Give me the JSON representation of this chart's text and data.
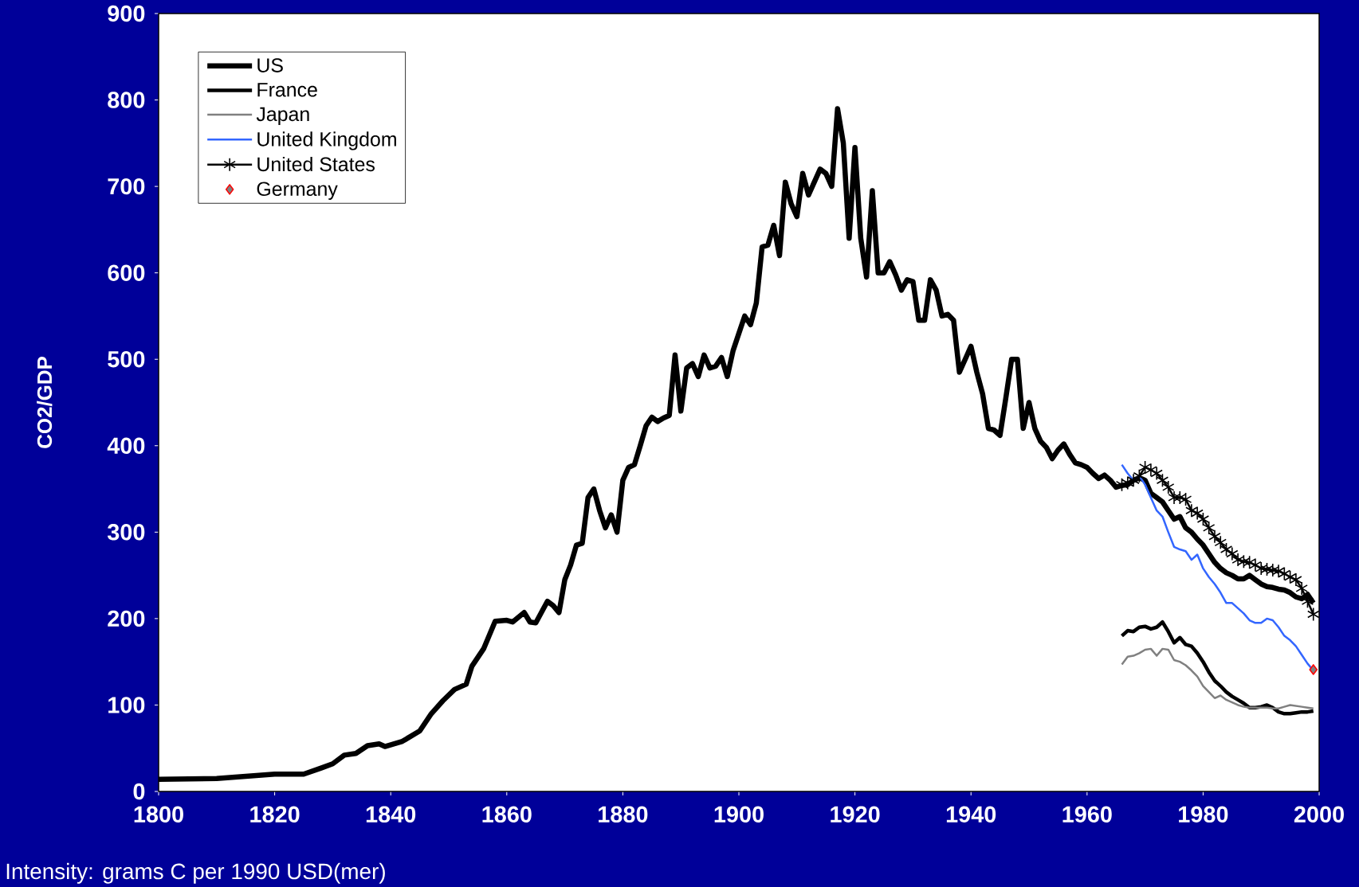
{
  "chart_data": {
    "type": "line",
    "ylabel": "CO2/GDP",
    "annotations": [
      "Intensity: grams C per 1990 USD(mer)"
    ],
    "xlim": [
      1800,
      2000
    ],
    "xticks": [
      1800,
      1820,
      1840,
      1860,
      1880,
      1900,
      1920,
      1940,
      1960,
      1980,
      2000
    ],
    "ylim": [
      0,
      900
    ],
    "yticks": [
      0,
      100,
      200,
      300,
      400,
      500,
      600,
      700,
      800,
      900
    ],
    "grid": false,
    "legend": "top left",
    "series": [
      {
        "name": "US",
        "color": "#000000",
        "marker": "none",
        "x": [
          1800,
          1810,
          1820,
          1825,
          1828,
          1830,
          1832,
          1834,
          1836,
          1838,
          1839,
          1842,
          1845,
          1847,
          1849,
          1851,
          1853,
          1854,
          1856,
          1858,
          1860,
          1861,
          1863,
          1864,
          1865,
          1867,
          1868,
          1869,
          1870,
          1871,
          1872,
          1873,
          1874,
          1875,
          1876,
          1877,
          1878,
          1879,
          1880,
          1881,
          1882,
          1883,
          1884,
          1885,
          1886,
          1887,
          1888,
          1889,
          1890,
          1891,
          1892,
          1893,
          1894,
          1895,
          1896,
          1897,
          1898,
          1899,
          1900,
          1901,
          1902,
          1903,
          1904,
          1905,
          1906,
          1907,
          1908,
          1909,
          1910,
          1911,
          1912,
          1913,
          1914,
          1915,
          1916,
          1917,
          1918,
          1919,
          1920,
          1921,
          1922,
          1923,
          1924,
          1925,
          1926,
          1927,
          1928,
          1929,
          1930,
          1931,
          1932,
          1933,
          1934,
          1935,
          1936,
          1937,
          1938,
          1939,
          1940,
          1941,
          1942,
          1943,
          1944,
          1945,
          1946,
          1947,
          1948,
          1949,
          1950,
          1951,
          1952,
          1953,
          1954,
          1955,
          1956,
          1957,
          1958,
          1959,
          1960,
          1961,
          1962,
          1963,
          1964,
          1965,
          1966,
          1967,
          1968,
          1969,
          1970,
          1971,
          1972,
          1973,
          1974,
          1975,
          1976,
          1977,
          1978,
          1979,
          1980,
          1981,
          1982,
          1983,
          1984,
          1985,
          1986,
          1987,
          1988,
          1989,
          1990,
          1991,
          1992,
          1993,
          1994,
          1995,
          1996,
          1997,
          1998,
          1999
        ],
        "values": [
          14,
          15,
          20,
          20,
          27,
          32,
          42,
          44,
          53,
          55,
          52,
          58,
          70,
          90,
          105,
          118,
          124,
          145,
          165,
          197,
          198,
          196,
          207,
          196,
          195,
          220,
          215,
          207,
          245,
          262,
          285,
          287,
          340,
          350,
          325,
          305,
          320,
          300,
          360,
          375,
          378,
          400,
          423,
          433,
          428,
          432,
          435,
          505,
          440,
          490,
          495,
          480,
          505,
          490,
          492,
          502,
          480,
          510,
          530,
          550,
          540,
          565,
          630,
          632,
          655,
          620,
          705,
          680,
          665,
          715,
          690,
          705,
          720,
          715,
          700,
          790,
          750,
          640,
          745,
          640,
          595,
          695,
          600,
          600,
          613,
          598,
          580,
          592,
          590,
          545,
          545,
          592,
          580,
          550,
          552,
          545,
          485,
          500,
          515,
          485,
          460,
          420,
          418,
          412,
          455,
          500,
          500,
          420,
          450,
          420,
          405,
          398,
          385,
          395,
          402,
          390,
          380,
          378,
          375,
          368,
          362,
          366,
          360,
          352,
          354,
          355,
          360,
          363,
          360,
          345,
          340,
          335,
          325,
          315,
          318,
          305,
          300,
          292,
          285,
          275,
          265,
          258,
          253,
          250,
          246,
          246,
          250,
          245,
          240,
          237,
          236,
          234,
          233,
          230,
          225,
          223,
          228,
          218
        ]
      },
      {
        "name": "France",
        "color": "#000000",
        "marker": "none",
        "x": [
          1966,
          1967,
          1968,
          1969,
          1970,
          1971,
          1972,
          1973,
          1974,
          1975,
          1976,
          1977,
          1978,
          1979,
          1980,
          1981,
          1982,
          1983,
          1984,
          1985,
          1986,
          1987,
          1988,
          1989,
          1990,
          1991,
          1992,
          1993,
          1994,
          1995,
          1996,
          1997,
          1998,
          1999
        ],
        "values": [
          180,
          186,
          185,
          190,
          191,
          188,
          190,
          196,
          185,
          172,
          178,
          170,
          168,
          160,
          150,
          138,
          128,
          122,
          115,
          110,
          106,
          102,
          97,
          97,
          98,
          100,
          97,
          92,
          90,
          90,
          91,
          92,
          92,
          93
        ]
      },
      {
        "name": "Japan",
        "color": "#808080",
        "marker": "none",
        "x": [
          1966,
          1967,
          1968,
          1969,
          1970,
          1971,
          1972,
          1973,
          1974,
          1975,
          1976,
          1977,
          1978,
          1979,
          1980,
          1981,
          1982,
          1983,
          1984,
          1985,
          1986,
          1987,
          1988,
          1989,
          1990,
          1991,
          1992,
          1993,
          1994,
          1995,
          1996,
          1997,
          1998,
          1999
        ],
        "values": [
          147,
          156,
          157,
          160,
          164,
          165,
          157,
          165,
          164,
          152,
          150,
          146,
          140,
          133,
          122,
          115,
          108,
          111,
          106,
          103,
          100,
          98,
          97,
          97,
          97,
          97,
          96,
          96,
          98,
          100,
          99,
          98,
          97,
          96
        ]
      },
      {
        "name": "United Kingdom",
        "color": "#3366ff",
        "marker": "none",
        "x": [
          1966,
          1967,
          1968,
          1969,
          1970,
          1971,
          1972,
          1973,
          1974,
          1975,
          1976,
          1977,
          1978,
          1979,
          1980,
          1981,
          1982,
          1983,
          1984,
          1985,
          1986,
          1987,
          1988,
          1989,
          1990,
          1991,
          1992,
          1993,
          1994,
          1995,
          1996,
          1997,
          1998,
          1999
        ],
        "values": [
          378,
          368,
          360,
          365,
          355,
          340,
          325,
          318,
          300,
          283,
          280,
          278,
          268,
          274,
          258,
          248,
          240,
          230,
          218,
          218,
          212,
          206,
          198,
          195,
          195,
          200,
          198,
          190,
          180,
          175,
          168,
          158,
          148,
          140
        ]
      },
      {
        "name": "United States",
        "color": "#000000",
        "marker": "cross",
        "x": [
          1966,
          1967,
          1968,
          1969,
          1970,
          1971,
          1972,
          1973,
          1974,
          1975,
          1976,
          1977,
          1978,
          1979,
          1980,
          1981,
          1982,
          1983,
          1984,
          1985,
          1986,
          1987,
          1988,
          1989,
          1990,
          1991,
          1992,
          1993,
          1994,
          1995,
          1996,
          1997,
          1998,
          1999
        ],
        "values": [
          355,
          357,
          360,
          365,
          375,
          372,
          368,
          360,
          352,
          340,
          340,
          338,
          325,
          322,
          315,
          305,
          295,
          288,
          280,
          275,
          268,
          266,
          265,
          262,
          258,
          257,
          256,
          255,
          252,
          248,
          245,
          235,
          220,
          205
        ]
      },
      {
        "name": "Germany",
        "type": "scatter",
        "color": "#ff0000",
        "marker": "diamond",
        "x": [
          1999
        ],
        "values": [
          141
        ]
      }
    ]
  }
}
